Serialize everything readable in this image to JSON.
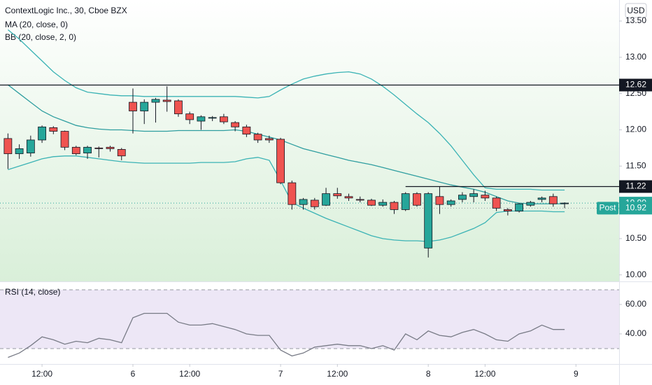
{
  "chart_data": [
    {
      "type": "candlestick",
      "title": "ContextLogic Inc., 30, Cboe BZX",
      "currency": "USD",
      "open": [
        11.88,
        11.67,
        11.68,
        11.86,
        12.03,
        11.98,
        11.76,
        11.68,
        11.75,
        11.76,
        11.73,
        12.38,
        12.26,
        12.38,
        12.41,
        12.4,
        12.22,
        12.12,
        12.16,
        12.18,
        12.1,
        12.04,
        11.94,
        11.88,
        11.87,
        11.27,
        10.97,
        11.03,
        10.96,
        11.12,
        11.08,
        11.04,
        11.03,
        10.96,
        11.0,
        10.9,
        11.12,
        10.37,
        11.08,
        10.97,
        11.04,
        11.08,
        11.1,
        11.06,
        10.9,
        10.88,
        10.96,
        11.04,
        11.08,
        10.99
      ],
      "high": [
        11.95,
        11.8,
        11.92,
        12.06,
        12.05,
        11.99,
        11.78,
        11.78,
        11.77,
        11.78,
        11.75,
        12.57,
        12.42,
        12.44,
        12.6,
        12.42,
        12.25,
        12.2,
        12.19,
        12.22,
        12.12,
        12.07,
        11.96,
        11.92,
        11.89,
        11.3,
        11.06,
        11.06,
        11.2,
        11.2,
        11.12,
        11.08,
        11.05,
        11.04,
        11.02,
        11.14,
        11.14,
        11.14,
        11.22,
        11.04,
        11.14,
        11.18,
        11.16,
        11.08,
        10.92,
        10.99,
        11.02,
        11.08,
        11.12,
        11.0
      ],
      "low": [
        11.46,
        11.6,
        11.63,
        11.82,
        11.94,
        11.72,
        11.65,
        11.6,
        11.62,
        11.7,
        11.58,
        11.95,
        12.08,
        12.1,
        12.25,
        12.18,
        12.08,
        12.0,
        12.12,
        12.08,
        11.98,
        11.9,
        11.82,
        11.82,
        11.25,
        10.9,
        10.9,
        10.9,
        10.95,
        11.05,
        11.02,
        11.0,
        10.95,
        10.94,
        10.84,
        10.88,
        10.94,
        10.24,
        10.84,
        10.94,
        11.0,
        11.0,
        11.02,
        10.88,
        10.82,
        10.86,
        10.94,
        11.0,
        10.94,
        10.92
      ],
      "close": [
        11.67,
        11.74,
        11.86,
        12.04,
        11.98,
        11.76,
        11.67,
        11.76,
        11.74,
        11.74,
        11.64,
        12.26,
        12.38,
        12.42,
        12.39,
        12.22,
        12.14,
        12.18,
        12.17,
        12.11,
        12.04,
        11.94,
        11.86,
        11.86,
        11.27,
        10.97,
        11.04,
        10.94,
        11.12,
        11.09,
        11.06,
        11.03,
        10.96,
        11.0,
        10.9,
        11.12,
        10.96,
        11.12,
        10.97,
        11.02,
        11.1,
        11.12,
        11.06,
        10.92,
        10.88,
        10.98,
        11.0,
        11.06,
        10.98,
        10.99
      ],
      "up_color": "#26a69a",
      "down_color": "#ef5350",
      "indicators": [
        {
          "name": "MA (20, close, 0)",
          "color": "#2f9ea0",
          "values": [
            12.62,
            12.5,
            12.38,
            12.26,
            12.18,
            12.12,
            12.06,
            12.03,
            12.01,
            12.0,
            12.0,
            11.99,
            11.98,
            11.98,
            11.98,
            11.99,
            11.99,
            11.99,
            11.99,
            11.99,
            12.0,
            11.98,
            11.94,
            11.9,
            11.86,
            11.8,
            11.74,
            11.7,
            11.66,
            11.62,
            11.58,
            11.55,
            11.52,
            11.48,
            11.44,
            11.4,
            11.36,
            11.32,
            11.28,
            11.24,
            11.21,
            11.18,
            11.14,
            11.08,
            11.02,
            10.99,
            10.98,
            10.98,
            10.98,
            10.98
          ]
        },
        {
          "name": "BB (20, close, 2, 0)",
          "color": "#3bb3b5",
          "upper": [
            13.38,
            13.25,
            13.1,
            12.95,
            12.8,
            12.68,
            12.58,
            12.52,
            12.5,
            12.48,
            12.47,
            12.47,
            12.46,
            12.46,
            12.46,
            12.46,
            12.46,
            12.46,
            12.46,
            12.46,
            12.46,
            12.45,
            12.44,
            12.46,
            12.55,
            12.63,
            12.7,
            12.74,
            12.77,
            12.79,
            12.8,
            12.77,
            12.7,
            12.6,
            12.48,
            12.35,
            12.22,
            12.1,
            11.95,
            11.78,
            11.58,
            11.38,
            11.2,
            11.18,
            11.18,
            11.18,
            11.18,
            11.17,
            11.17,
            11.17
          ],
          "lower": [
            11.45,
            11.5,
            11.55,
            11.6,
            11.63,
            11.64,
            11.64,
            11.62,
            11.6,
            11.58,
            11.56,
            11.55,
            11.54,
            11.54,
            11.54,
            11.54,
            11.54,
            11.55,
            11.55,
            11.55,
            11.56,
            11.6,
            11.62,
            11.58,
            11.3,
            11.0,
            10.92,
            10.85,
            10.78,
            10.72,
            10.66,
            10.6,
            10.54,
            10.5,
            10.48,
            10.47,
            10.47,
            10.46,
            10.48,
            10.52,
            10.58,
            10.64,
            10.72,
            10.86,
            10.88,
            10.88,
            10.88,
            10.88,
            10.87,
            10.87
          ]
        }
      ],
      "levels": [
        {
          "value": 12.62,
          "color": "#131722"
        },
        {
          "value": 11.22,
          "color": "#131722",
          "x_start": 35
        }
      ],
      "last_price": {
        "value": 10.99,
        "color": "#26a69a"
      },
      "post_price": {
        "label": "Post",
        "value": 10.92,
        "color": "#26a69a"
      },
      "ylim": [
        9.91,
        13.79
      ],
      "yticks": [
        {
          "value": 13.5,
          "label": "13.50"
        },
        {
          "value": 13,
          "label": "13.00"
        },
        {
          "value": 12.5,
          "label": "12.50"
        },
        {
          "value": 12,
          "label": "12.00"
        },
        {
          "value": 11.5,
          "label": "11.50"
        },
        {
          "value": 11,
          "label": "11.00"
        },
        {
          "value": 10.5,
          "label": "10.50"
        },
        {
          "value": 10,
          "label": "10.00"
        }
      ],
      "xlim": [
        -0.7,
        53.8
      ],
      "xticks": [
        {
          "value": 3,
          "label": "12:00"
        },
        {
          "value": 11,
          "label": "6"
        },
        {
          "value": 16,
          "label": "12:00"
        },
        {
          "value": 24,
          "label": "7"
        },
        {
          "value": 29,
          "label": "12:00"
        },
        {
          "value": 37,
          "label": "8"
        },
        {
          "value": 42,
          "label": "12:00"
        },
        {
          "value": 50,
          "label": "9"
        }
      ]
    },
    {
      "type": "line",
      "title": "RSI (14, close)",
      "color": "#787b86",
      "values": [
        24,
        27,
        32,
        38,
        36,
        33,
        35,
        34,
        37,
        36,
        34,
        51,
        54,
        54,
        54,
        48,
        46,
        46,
        47,
        45,
        43,
        40,
        39,
        39,
        29,
        25,
        27,
        31,
        32,
        33,
        32,
        32,
        30,
        32,
        29,
        40,
        36,
        42,
        39,
        38,
        41,
        43,
        40,
        36,
        35,
        40,
        42,
        46,
        43,
        43
      ],
      "band": [
        30,
        70
      ],
      "band_color": "#ede7f6",
      "ylim": [
        19.5,
        75.7
      ],
      "yticks": [
        {
          "value": 60,
          "label": "60.00"
        },
        {
          "value": 40,
          "label": "40.00"
        }
      ]
    }
  ]
}
